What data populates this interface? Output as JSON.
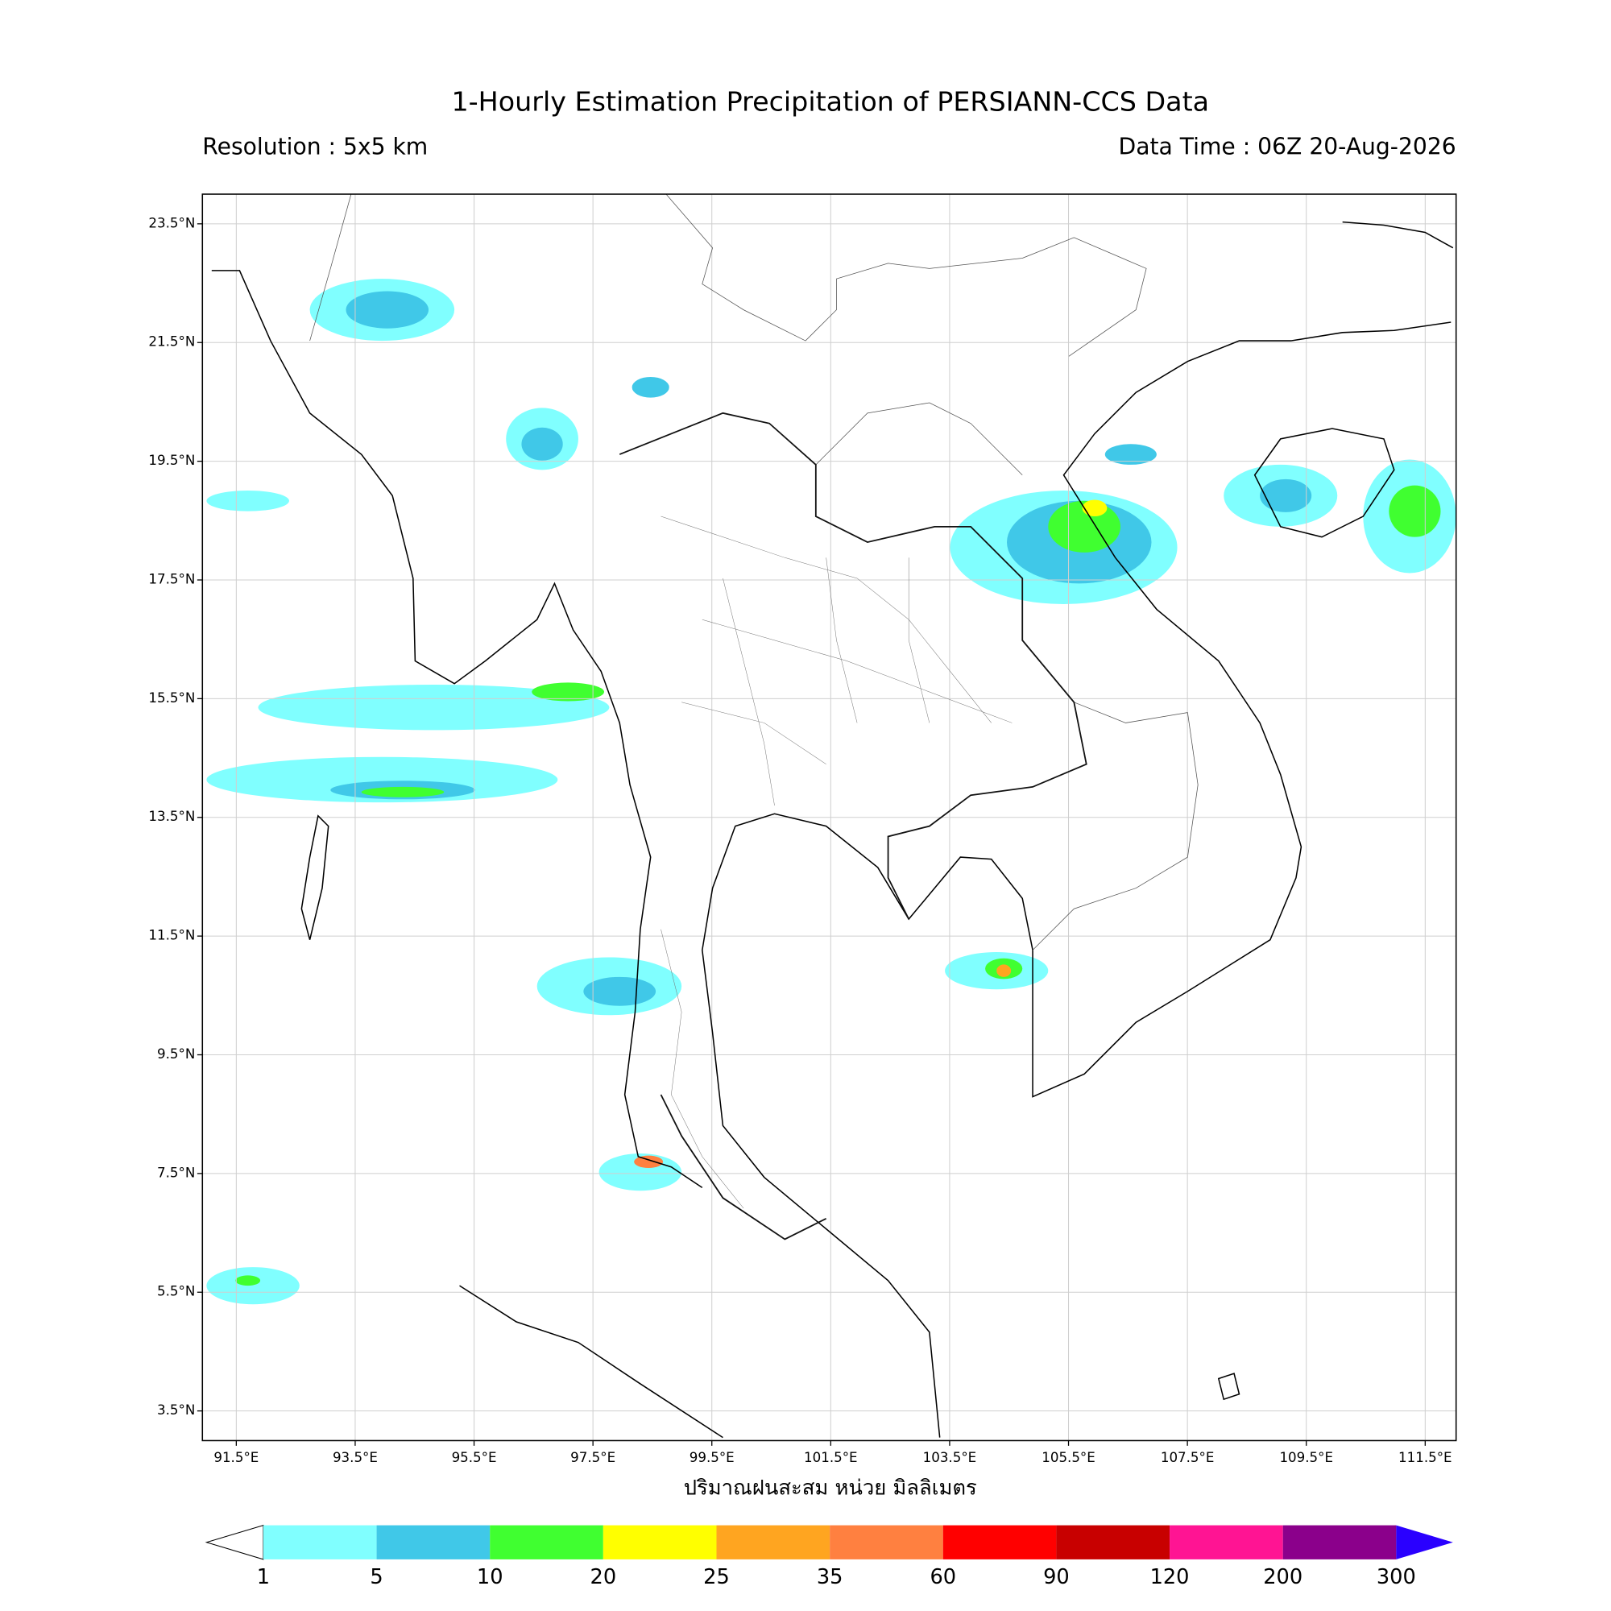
{
  "title": "1-Hourly Estimation Precipitation of PERSIANN-CCS Data",
  "resolution": "Resolution : 5x5 km",
  "data_time": "Data Time : 06Z 20-Aug-2026",
  "map": {
    "lonlim": [
      90.93,
      112.02
    ],
    "latlim": [
      3.0,
      24.0
    ],
    "grid": true,
    "lat_ticks": [
      {
        "value": 23.5,
        "label": "23.5°N"
      },
      {
        "value": 21.5,
        "label": "21.5°N"
      },
      {
        "value": 19.5,
        "label": "19.5°N"
      },
      {
        "value": 17.5,
        "label": "17.5°N"
      },
      {
        "value": 15.5,
        "label": "15.5°N"
      },
      {
        "value": 13.5,
        "label": "13.5°N"
      },
      {
        "value": 11.5,
        "label": "11.5°N"
      },
      {
        "value": 9.5,
        "label": "9.5°N"
      },
      {
        "value": 7.5,
        "label": "7.5°N"
      },
      {
        "value": 5.5,
        "label": "5.5°N"
      },
      {
        "value": 3.5,
        "label": "3.5°N"
      }
    ],
    "lon_ticks": [
      {
        "value": 91.5,
        "label": "91.5°E"
      },
      {
        "value": 93.5,
        "label": "93.5°E"
      },
      {
        "value": 95.5,
        "label": "95.5°E"
      },
      {
        "value": 97.5,
        "label": "97.5°E"
      },
      {
        "value": 99.5,
        "label": "99.5°E"
      },
      {
        "value": 101.5,
        "label": "101.5°E"
      },
      {
        "value": 103.5,
        "label": "103.5°E"
      },
      {
        "value": 105.5,
        "label": "105.5°E"
      },
      {
        "value": 107.5,
        "label": "107.5°E"
      },
      {
        "value": 109.5,
        "label": "109.5°E"
      },
      {
        "value": 111.5,
        "label": "111.5°E"
      }
    ],
    "xlabel": "ปริมาณฝนสะสม หน่วย มิลลิเมตร"
  },
  "colorbar": {
    "levels": [
      1,
      5,
      10,
      20,
      25,
      35,
      60,
      90,
      120,
      200,
      300
    ],
    "colors": [
      "#80ffff",
      "#40c8e8",
      "#40ff30",
      "#ffff00",
      "#ffa520",
      "#ff8040",
      "#ff0000",
      "#c80000",
      "#ff1493",
      "#8b008b"
    ],
    "under_color": "#ffffff",
    "over_color": "#2a00ff"
  }
}
